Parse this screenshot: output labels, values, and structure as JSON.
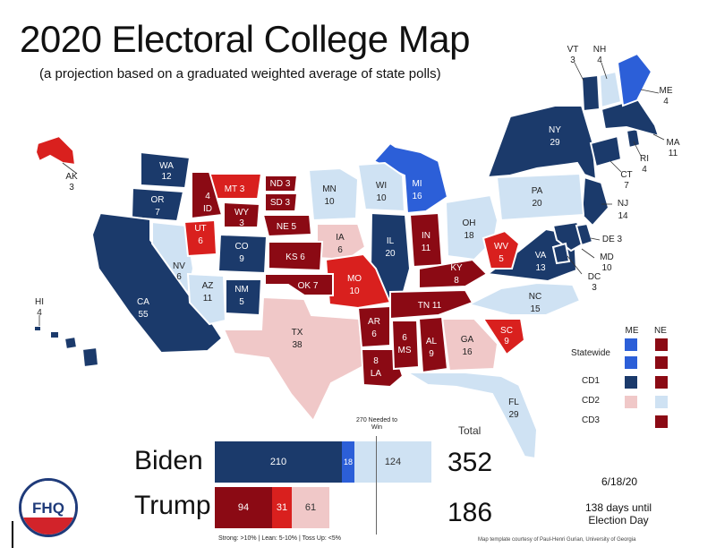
{
  "title": "2020 Electoral College Map",
  "subtitle": "(a projection based on a graduated weighted average of state polls)",
  "colors": {
    "strong_d": "#1b3a6b",
    "lean_d": "#2c5fd8",
    "tossup_d": "#cfe2f3",
    "tossup_r": "#f0c8c8",
    "lean_r": "#d9201e",
    "strong_r": "#8b0a14"
  },
  "states": {
    "vt": {
      "abbr": "VT",
      "ev": "3"
    },
    "nh": {
      "abbr": "NH",
      "ev": "4"
    },
    "me": {
      "abbr": "ME",
      "ev": "4"
    },
    "ma": {
      "abbr": "MA",
      "ev": "11"
    },
    "ri": {
      "abbr": "RI",
      "ev": "4"
    },
    "ct": {
      "abbr": "CT",
      "ev": "7"
    },
    "nj": {
      "abbr": "NJ",
      "ev": "14"
    },
    "de": {
      "label": "DE 3"
    },
    "md": {
      "abbr": "MD",
      "ev": "10"
    },
    "dc": {
      "abbr": "DC",
      "ev": "3"
    },
    "ny": {
      "abbr": "NY",
      "ev": "29"
    },
    "pa": {
      "abbr": "PA",
      "ev": "20"
    },
    "oh": {
      "abbr": "OH",
      "ev": "18"
    },
    "mi": {
      "abbr": "MI",
      "ev": "16"
    },
    "wi": {
      "abbr": "WI",
      "ev": "10"
    },
    "mn": {
      "abbr": "MN",
      "ev": "10"
    },
    "ia": {
      "abbr": "IA",
      "ev": "6"
    },
    "il": {
      "abbr": "IL",
      "ev": "20"
    },
    "in": {
      "abbr": "IN",
      "ev": "11"
    },
    "ky": {
      "abbr": "KY",
      "ev": "8"
    },
    "wv": {
      "abbr": "WV",
      "ev": "5"
    },
    "va": {
      "abbr": "VA",
      "ev": "13"
    },
    "nc": {
      "abbr": "NC",
      "ev": "15"
    },
    "sc": {
      "abbr": "SC",
      "ev": "9"
    },
    "ga": {
      "abbr": "GA",
      "ev": "16"
    },
    "fl": {
      "abbr": "FL",
      "ev": "29"
    },
    "al": {
      "abbr": "AL",
      "ev": "9"
    },
    "ms": {
      "abbr": "MS",
      "ev": "6"
    },
    "tn": {
      "label": "TN 11"
    },
    "la": {
      "abbr": "LA",
      "ev": "8"
    },
    "ar": {
      "abbr": "AR",
      "ev": "6"
    },
    "mo": {
      "abbr": "MO",
      "ev": "10"
    },
    "ks": {
      "label": "KS 6"
    },
    "ok": {
      "label": "OK 7"
    },
    "tx": {
      "abbr": "TX",
      "ev": "38"
    },
    "ne": {
      "label": "NE 5"
    },
    "sd": {
      "label": "SD 3"
    },
    "nd": {
      "label": "ND 3"
    },
    "mt": {
      "label": "MT 3"
    },
    "wy": {
      "abbr": "WY",
      "ev": "3"
    },
    "co": {
      "abbr": "CO",
      "ev": "9"
    },
    "nm": {
      "abbr": "NM",
      "ev": "5"
    },
    "az": {
      "abbr": "AZ",
      "ev": "11"
    },
    "ut": {
      "abbr": "UT",
      "ev": "6"
    },
    "nv": {
      "abbr": "NV",
      "ev": "6"
    },
    "id": {
      "abbr": "ID",
      "ev": "4"
    },
    "wa": {
      "abbr": "WA",
      "ev": "12"
    },
    "or": {
      "abbr": "OR",
      "ev": "7"
    },
    "ca": {
      "abbr": "CA",
      "ev": "55"
    },
    "ak": {
      "abbr": "AK",
      "ev": "3"
    },
    "hi": {
      "abbr": "HI",
      "ev": "4"
    }
  },
  "legend": {
    "me": "ME",
    "ne": "NE",
    "statewide": "Statewide",
    "cd1": "CD1",
    "cd2": "CD2",
    "cd3": "CD3"
  },
  "results": {
    "total_label": "Total",
    "needed_label": "270 Needed to Win",
    "biden": {
      "name": "Biden",
      "total": "352",
      "segments": [
        {
          "value": "210",
          "tier": "strong_d"
        },
        {
          "value": "18",
          "tier": "lean_d"
        },
        {
          "value": "124",
          "tier": "tossup_d"
        }
      ]
    },
    "trump": {
      "name": "Trump",
      "total": "186",
      "segments": [
        {
          "value": "94",
          "tier": "strong_r"
        },
        {
          "value": "31",
          "tier": "lean_r"
        },
        {
          "value": "61",
          "tier": "tossup_r"
        }
      ]
    },
    "bar_legend": "Strong: >10%  |  Lean: 5-10%  |  Toss Up: <5%"
  },
  "date": "6/18/20",
  "days_until": "138 days until Election Day",
  "credit": "Map template courtesy of Paul-Henri Gurian, University of Georgia",
  "logo": "FHQ"
}
